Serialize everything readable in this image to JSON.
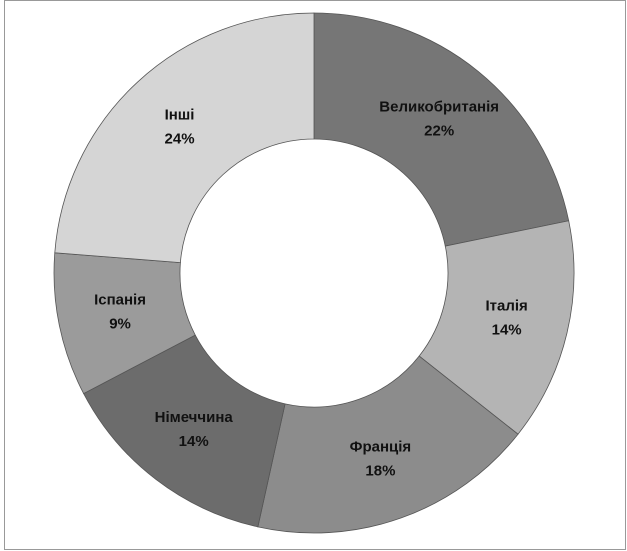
{
  "chart_data": {
    "type": "donut",
    "categories": [
      "Великобританія",
      "Італія",
      "Франція",
      "Німеччина",
      "Іспанія",
      "Інші"
    ],
    "values": [
      22,
      14,
      18,
      14,
      9,
      24
    ],
    "value_labels": [
      "22%",
      "14%",
      "18%",
      "14%",
      "9%",
      "24%"
    ],
    "colors": [
      "#767676",
      "#b4b4b4",
      "#8c8c8c",
      "#6c6c6c",
      "#9b9b9b",
      "#d5d5d5"
    ]
  }
}
